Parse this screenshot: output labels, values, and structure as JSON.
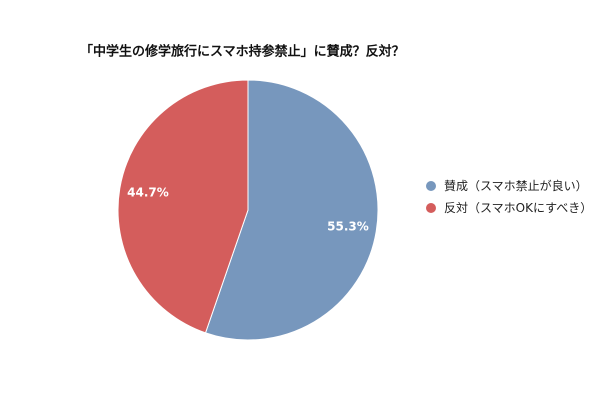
{
  "chart_data": {
    "type": "pie",
    "title": "「中学生の修学旅行にスマホ持参禁止」に賛成？反対？",
    "categories": [
      "賛成（スマホ禁止が良い）",
      "反対（スマホOKにすべき）"
    ],
    "values": [
      55.3,
      44.7
    ],
    "value_labels": [
      "55.3%",
      "44.7%"
    ],
    "colors": [
      "#7797bd",
      "#d45d5c"
    ],
    "legend": "right"
  }
}
